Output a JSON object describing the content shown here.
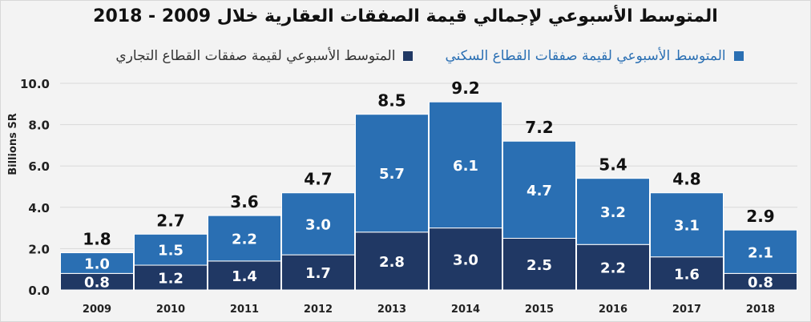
{
  "chart_data": {
    "type": "bar",
    "stacked": true,
    "title": "المتوسط الأسبوعي لإجمالي قيمة الصفقات العقارية خلال 2009 - 2018",
    "ylabel": "Billions SR",
    "xlabel": "",
    "ylim": [
      0,
      10
    ],
    "yticks": [
      "0.0",
      "2.0",
      "4.0",
      "6.0",
      "8.0",
      "10.0"
    ],
    "grid": true,
    "legend_position": "top",
    "categories": [
      "2009",
      "2010",
      "2011",
      "2012",
      "2013",
      "2014",
      "2015",
      "2016",
      "2017",
      "2018"
    ],
    "series": [
      {
        "name": "المتوسط الأسبوعي لقيمة صفقات القطاع التجاري",
        "color": "#203864",
        "text_color": "#333333",
        "values": [
          0.8,
          1.2,
          1.4,
          1.7,
          2.8,
          3.0,
          2.5,
          2.2,
          1.6,
          0.8
        ]
      },
      {
        "name": "المتوسط الأسبوعي لقيمة صفقات القطاع السكني",
        "color": "#2a6fb3",
        "text_color": "#2a6fb3",
        "values": [
          1.0,
          1.5,
          2.2,
          3.0,
          5.7,
          6.1,
          4.7,
          3.2,
          3.1,
          2.1
        ]
      }
    ],
    "totals": [
      1.8,
      2.7,
      3.6,
      4.7,
      8.5,
      9.2,
      7.2,
      5.4,
      4.8,
      2.9
    ]
  }
}
